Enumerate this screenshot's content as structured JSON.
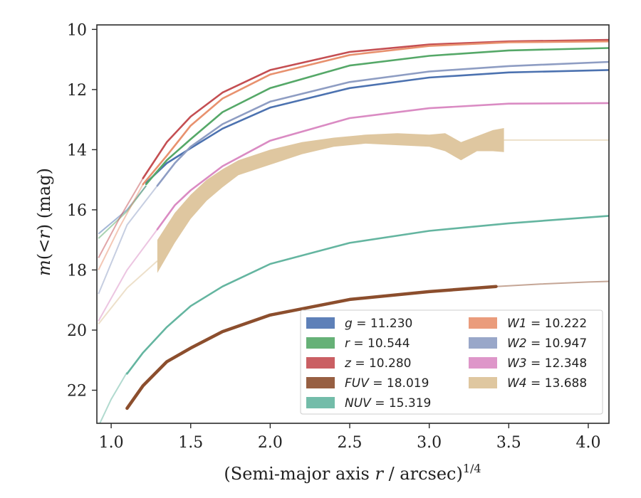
{
  "chart_data": {
    "type": "line",
    "title": "",
    "xlabel": "(Semi-major axis r / arcsec)^1/4",
    "xlabel_parts": {
      "prefix": "(Semi-major axis ",
      "var": "r",
      "mid": " / arcsec)",
      "sup": "1/4"
    },
    "ylabel": "m(< r) (mag)",
    "ylabel_parts": {
      "m": "m",
      "open": "(<",
      "r": "r",
      "close": ")",
      "unit": "(mag)"
    },
    "xlim": [
      0.91,
      4.13
    ],
    "ylim": [
      23.1,
      9.85
    ],
    "y_inverted": true,
    "x_ticks": [
      "1.0",
      "1.5",
      "2.0",
      "2.5",
      "3.0",
      "3.5",
      "4.0"
    ],
    "y_ticks": [
      "10",
      "12",
      "14",
      "16",
      "18",
      "20",
      "22"
    ],
    "grid": false,
    "legend_position": "lower-right",
    "series": [
      {
        "name": "g",
        "value_text": "11.230",
        "color": "#4c72b0",
        "faint_x": [
          0.92,
          1.1,
          1.22
        ],
        "faint_y": [
          16.8,
          16.0,
          15.2
        ],
        "x": [
          1.22,
          1.35,
          1.5,
          1.7,
          2.0,
          2.5,
          3.0,
          3.5,
          4.13
        ],
        "y": [
          15.1,
          14.45,
          13.95,
          13.3,
          12.6,
          11.95,
          11.6,
          11.43,
          11.35
        ]
      },
      {
        "name": "r",
        "value_text": "10.544",
        "color": "#55a868",
        "faint_x": [
          0.92,
          1.1,
          1.22
        ],
        "faint_y": [
          16.95,
          16.05,
          15.2
        ],
        "x": [
          1.22,
          1.35,
          1.5,
          1.7,
          2.0,
          2.5,
          3.0,
          3.5,
          4.13
        ],
        "y": [
          15.15,
          14.35,
          13.65,
          12.75,
          11.95,
          11.2,
          10.88,
          10.7,
          10.62
        ]
      },
      {
        "name": "z",
        "value_text": "10.280",
        "color": "#c44e52",
        "faint_x": [
          0.92,
          1.05,
          1.2
        ],
        "faint_y": [
          17.6,
          16.3,
          14.95
        ],
        "x": [
          1.2,
          1.35,
          1.5,
          1.7,
          2.0,
          2.5,
          3.0,
          3.5,
          4.13
        ],
        "y": [
          14.95,
          13.75,
          12.9,
          12.1,
          11.35,
          10.75,
          10.5,
          10.4,
          10.35
        ]
      },
      {
        "name": "FUV",
        "value_text": "18.019",
        "color": "#8c4e2d",
        "wide": true,
        "faint_x": [
          3.42,
          3.7,
          4.0,
          4.13
        ],
        "faint_y": [
          18.55,
          18.47,
          18.4,
          18.38
        ],
        "x": [
          1.1,
          1.2,
          1.35,
          1.5,
          1.7,
          2.0,
          2.5,
          3.0,
          3.42
        ],
        "y": [
          22.6,
          21.85,
          21.05,
          20.6,
          20.05,
          19.5,
          18.98,
          18.72,
          18.55
        ]
      },
      {
        "name": "NUV",
        "value_text": "15.319",
        "color": "#64b5a0",
        "faint_x": [
          0.92,
          1.0,
          1.1
        ],
        "faint_y": [
          23.2,
          22.3,
          21.4
        ],
        "x": [
          1.1,
          1.2,
          1.35,
          1.5,
          1.7,
          2.0,
          2.5,
          3.0,
          3.5,
          4.13
        ],
        "y": [
          21.45,
          20.75,
          19.9,
          19.2,
          18.55,
          17.8,
          17.1,
          16.7,
          16.45,
          16.2
        ]
      },
      {
        "name": "W1",
        "value_text": "10.222",
        "color": "#e8916e",
        "faint_x": [
          0.92,
          1.05,
          1.2
        ],
        "faint_y": [
          18.0,
          16.6,
          15.15
        ],
        "x": [
          1.2,
          1.35,
          1.5,
          1.7,
          2.0,
          2.5,
          3.0,
          3.5,
          4.13
        ],
        "y": [
          15.15,
          14.2,
          13.2,
          12.3,
          11.5,
          10.85,
          10.55,
          10.43,
          10.4
        ]
      },
      {
        "name": "W2",
        "value_text": "10.947",
        "color": "#8e9dc3",
        "faint_x": [
          0.92,
          1.1,
          1.29
        ],
        "faint_y": [
          18.8,
          16.5,
          15.2
        ],
        "x": [
          1.29,
          1.4,
          1.5,
          1.7,
          2.0,
          2.5,
          3.0,
          3.5,
          4.13
        ],
        "y": [
          15.2,
          14.45,
          13.9,
          13.15,
          12.4,
          11.75,
          11.4,
          11.22,
          11.08
        ]
      },
      {
        "name": "W3",
        "value_text": "12.348",
        "color": "#da8bc3",
        "faint_x": [
          0.92,
          1.1,
          1.29
        ],
        "faint_y": [
          19.7,
          18.0,
          16.65
        ],
        "x": [
          1.29,
          1.4,
          1.5,
          1.7,
          2.0,
          2.5,
          3.0,
          3.5,
          4.13
        ],
        "y": [
          16.65,
          15.85,
          15.35,
          14.55,
          13.7,
          12.95,
          12.62,
          12.47,
          12.45
        ]
      },
      {
        "name": "W4",
        "value_text": "13.688",
        "color": "#dcc196",
        "band": true,
        "faint_x": [
          0.92,
          1.1,
          1.29
        ],
        "faint_y": [
          19.8,
          18.6,
          17.7
        ],
        "faint_x2": [
          3.47,
          3.8,
          4.13
        ],
        "faint_y2": [
          13.68,
          13.68,
          13.68
        ],
        "x": [
          1.29,
          1.4,
          1.5,
          1.6,
          1.7,
          1.8,
          2.0,
          2.2,
          2.4,
          2.6,
          2.8,
          3.0,
          3.1,
          3.2,
          3.3,
          3.4,
          3.47
        ],
        "y": [
          17.55,
          16.6,
          15.9,
          15.35,
          14.95,
          14.6,
          14.25,
          13.95,
          13.75,
          13.65,
          13.65,
          13.7,
          13.75,
          14.05,
          13.8,
          13.7,
          13.68
        ],
        "half_width": [
          0.55,
          0.5,
          0.4,
          0.35,
          0.3,
          0.25,
          0.25,
          0.2,
          0.15,
          0.15,
          0.2,
          0.2,
          0.3,
          0.3,
          0.25,
          0.35,
          0.4
        ]
      }
    ],
    "legend": [
      {
        "prefix": "g",
        "suffix": " = 11.230"
      },
      {
        "prefix": "r",
        "suffix": " = 10.544"
      },
      {
        "prefix": "z",
        "suffix": " = 10.280"
      },
      {
        "prefix": "FUV",
        "suffix": " = 18.019"
      },
      {
        "prefix": "NUV",
        "suffix": " = 15.319"
      },
      {
        "prefix": "W1",
        "suffix": " = 10.222"
      },
      {
        "prefix": "W2",
        "suffix": " = 10.947"
      },
      {
        "prefix": "W3",
        "suffix": " = 12.348"
      },
      {
        "prefix": "W4",
        "suffix": " = 13.688"
      }
    ]
  }
}
